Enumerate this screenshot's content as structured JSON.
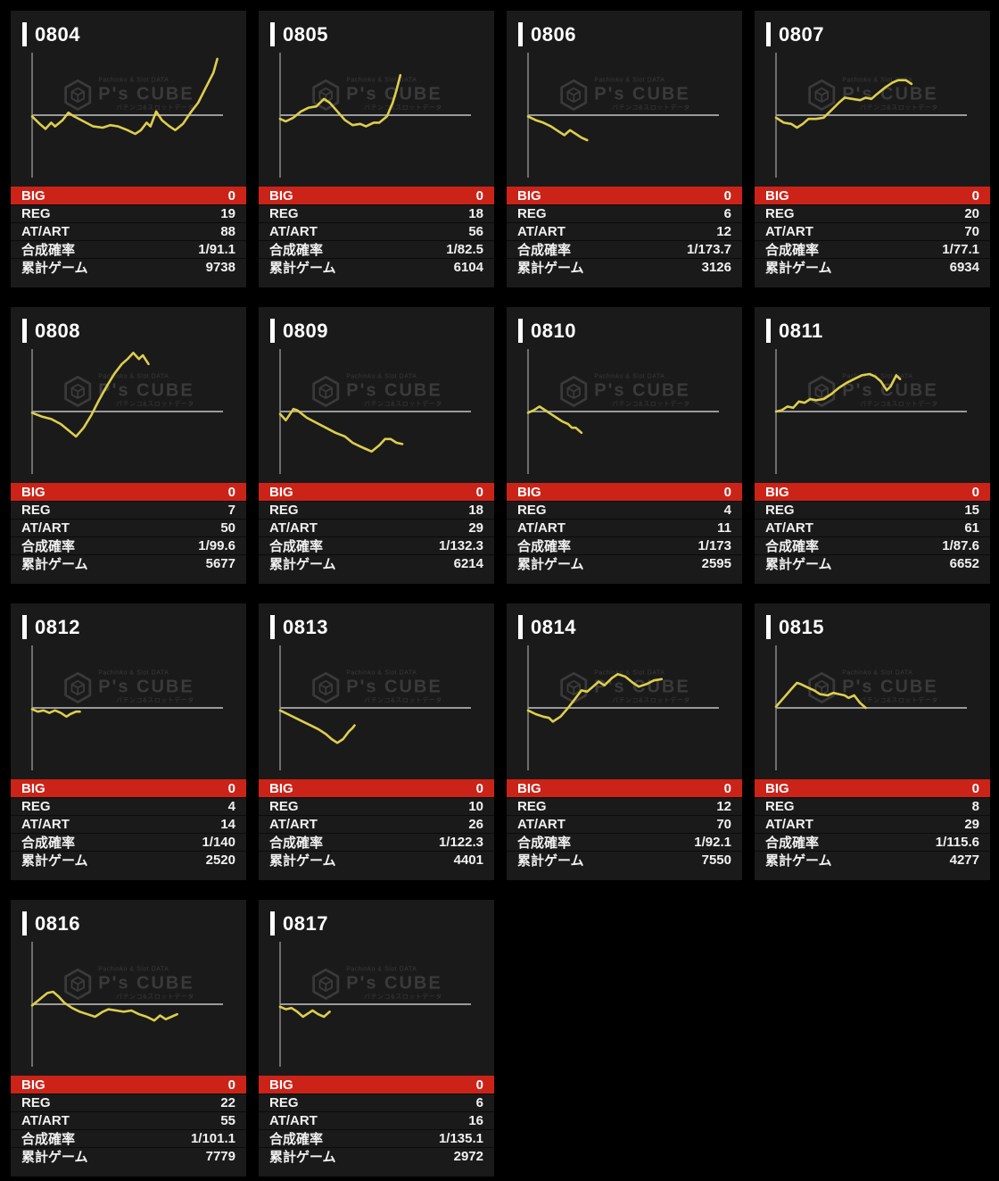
{
  "labels": {
    "big": "BIG",
    "reg": "REG",
    "at_art": "AT/ART",
    "rate": "合成確率",
    "total": "累計ゲーム"
  },
  "watermark": {
    "brand": "P's CUBE",
    "caption_top": "Pachinko & Slot DATA",
    "caption_bottom": "パチンコ&スロットデータ"
  },
  "colors": {
    "page_bg": "#000000",
    "card_bg": "#1a1a1a",
    "big_row_red": "#cc2318",
    "line_yellow": "#ddce4d",
    "axis_gray": "#9a9a9a",
    "text_white": "#f1f1f1",
    "watermark_gray": "#3a3a3a"
  },
  "machines": [
    {
      "id": "0804",
      "big": "0",
      "reg": "19",
      "at_art": "88",
      "rate": "1/91.1",
      "total": "9738",
      "points": [
        [
          0,
          -0.01
        ],
        [
          0.04,
          -0.07
        ],
        [
          0.07,
          -0.11
        ],
        [
          0.1,
          -0.06
        ],
        [
          0.12,
          -0.09
        ],
        [
          0.16,
          -0.04
        ],
        [
          0.19,
          0.02
        ],
        [
          0.22,
          -0.01
        ],
        [
          0.27,
          -0.05
        ],
        [
          0.32,
          -0.09
        ],
        [
          0.37,
          -0.1
        ],
        [
          0.41,
          -0.08
        ],
        [
          0.45,
          -0.09
        ],
        [
          0.5,
          -0.12
        ],
        [
          0.54,
          -0.15
        ],
        [
          0.57,
          -0.12
        ],
        [
          0.6,
          -0.06
        ],
        [
          0.62,
          -0.09
        ],
        [
          0.65,
          0.03
        ],
        [
          0.68,
          -0.04
        ],
        [
          0.72,
          -0.09
        ],
        [
          0.75,
          -0.12
        ],
        [
          0.79,
          -0.07
        ],
        [
          0.83,
          0.02
        ],
        [
          0.87,
          0.1
        ],
        [
          0.91,
          0.22
        ],
        [
          0.95,
          0.34
        ],
        [
          0.97,
          0.45
        ]
      ]
    },
    {
      "id": "0805",
      "big": "0",
      "reg": "18",
      "at_art": "56",
      "rate": "1/82.5",
      "total": "6104",
      "points": [
        [
          0,
          -0.03
        ],
        [
          0.03,
          -0.05
        ],
        [
          0.07,
          -0.02
        ],
        [
          0.11,
          0.03
        ],
        [
          0.15,
          0.06
        ],
        [
          0.19,
          0.07
        ],
        [
          0.23,
          0.13
        ],
        [
          0.26,
          0.1
        ],
        [
          0.3,
          0.03
        ],
        [
          0.34,
          -0.04
        ],
        [
          0.38,
          -0.08
        ],
        [
          0.42,
          -0.07
        ],
        [
          0.45,
          -0.09
        ],
        [
          0.49,
          -0.06
        ],
        [
          0.52,
          -0.06
        ],
        [
          0.56,
          -0.01
        ],
        [
          0.59,
          0.1
        ],
        [
          0.61,
          0.2
        ],
        [
          0.63,
          0.32
        ]
      ]
    },
    {
      "id": "0806",
      "big": "0",
      "reg": "6",
      "at_art": "12",
      "rate": "1/173.7",
      "total": "3126",
      "points": [
        [
          0,
          -0.01
        ],
        [
          0.04,
          -0.04
        ],
        [
          0.08,
          -0.06
        ],
        [
          0.12,
          -0.09
        ],
        [
          0.16,
          -0.13
        ],
        [
          0.19,
          -0.16
        ],
        [
          0.22,
          -0.12
        ],
        [
          0.25,
          -0.15
        ],
        [
          0.28,
          -0.18
        ],
        [
          0.31,
          -0.2
        ]
      ]
    },
    {
      "id": "0807",
      "big": "0",
      "reg": "20",
      "at_art": "70",
      "rate": "1/77.1",
      "total": "6934",
      "points": [
        [
          0,
          -0.02
        ],
        [
          0.04,
          -0.06
        ],
        [
          0.08,
          -0.07
        ],
        [
          0.11,
          -0.1
        ],
        [
          0.14,
          -0.07
        ],
        [
          0.17,
          -0.03
        ],
        [
          0.21,
          -0.03
        ],
        [
          0.25,
          -0.02
        ],
        [
          0.29,
          0.04
        ],
        [
          0.33,
          0.1
        ],
        [
          0.36,
          0.14
        ],
        [
          0.4,
          0.13
        ],
        [
          0.44,
          0.12
        ],
        [
          0.47,
          0.14
        ],
        [
          0.5,
          0.13
        ],
        [
          0.53,
          0.17
        ],
        [
          0.57,
          0.22
        ],
        [
          0.61,
          0.26
        ],
        [
          0.64,
          0.28
        ],
        [
          0.68,
          0.28
        ],
        [
          0.71,
          0.25
        ]
      ]
    },
    {
      "id": "0808",
      "big": "0",
      "reg": "7",
      "at_art": "50",
      "rate": "1/99.6",
      "total": "5677",
      "points": [
        [
          0,
          -0.01
        ],
        [
          0.05,
          -0.04
        ],
        [
          0.1,
          -0.06
        ],
        [
          0.15,
          -0.1
        ],
        [
          0.19,
          -0.15
        ],
        [
          0.23,
          -0.2
        ],
        [
          0.27,
          -0.13
        ],
        [
          0.31,
          -0.03
        ],
        [
          0.35,
          0.09
        ],
        [
          0.39,
          0.2
        ],
        [
          0.43,
          0.3
        ],
        [
          0.47,
          0.38
        ],
        [
          0.5,
          0.42
        ],
        [
          0.53,
          0.47
        ],
        [
          0.56,
          0.42
        ],
        [
          0.58,
          0.45
        ],
        [
          0.61,
          0.38
        ]
      ]
    },
    {
      "id": "0809",
      "big": "0",
      "reg": "18",
      "at_art": "29",
      "rate": "1/132.3",
      "total": "6214",
      "points": [
        [
          0,
          -0.02
        ],
        [
          0.03,
          -0.07
        ],
        [
          0.07,
          0.02
        ],
        [
          0.09,
          0.01
        ],
        [
          0.14,
          -0.05
        ],
        [
          0.19,
          -0.09
        ],
        [
          0.24,
          -0.13
        ],
        [
          0.29,
          -0.17
        ],
        [
          0.34,
          -0.2
        ],
        [
          0.38,
          -0.25
        ],
        [
          0.42,
          -0.28
        ],
        [
          0.45,
          -0.3
        ],
        [
          0.48,
          -0.32
        ],
        [
          0.52,
          -0.27
        ],
        [
          0.55,
          -0.22
        ],
        [
          0.58,
          -0.22
        ],
        [
          0.61,
          -0.25
        ],
        [
          0.64,
          -0.26
        ]
      ]
    },
    {
      "id": "0810",
      "big": "0",
      "reg": "4",
      "at_art": "11",
      "rate": "1/173",
      "total": "2595",
      "points": [
        [
          0,
          -0.01
        ],
        [
          0.03,
          0.01
        ],
        [
          0.06,
          0.04
        ],
        [
          0.09,
          0.01
        ],
        [
          0.12,
          -0.02
        ],
        [
          0.15,
          -0.05
        ],
        [
          0.18,
          -0.08
        ],
        [
          0.21,
          -0.1
        ],
        [
          0.23,
          -0.13
        ],
        [
          0.25,
          -0.13
        ],
        [
          0.28,
          -0.17
        ]
      ]
    },
    {
      "id": "0811",
      "big": "0",
      "reg": "15",
      "at_art": "61",
      "rate": "1/87.6",
      "total": "6652",
      "points": [
        [
          0,
          0
        ],
        [
          0.03,
          0.01
        ],
        [
          0.06,
          0.04
        ],
        [
          0.09,
          0.03
        ],
        [
          0.12,
          0.08
        ],
        [
          0.15,
          0.07
        ],
        [
          0.18,
          0.1
        ],
        [
          0.21,
          0.09
        ],
        [
          0.25,
          0.1
        ],
        [
          0.29,
          0.14
        ],
        [
          0.33,
          0.19
        ],
        [
          0.37,
          0.23
        ],
        [
          0.41,
          0.26
        ],
        [
          0.45,
          0.29
        ],
        [
          0.49,
          0.3
        ],
        [
          0.52,
          0.28
        ],
        [
          0.55,
          0.24
        ],
        [
          0.58,
          0.17
        ],
        [
          0.6,
          0.2
        ],
        [
          0.63,
          0.29
        ],
        [
          0.65,
          0.26
        ]
      ]
    },
    {
      "id": "0812",
      "big": "0",
      "reg": "4",
      "at_art": "14",
      "rate": "1/140",
      "total": "2520",
      "points": [
        [
          0,
          -0.01
        ],
        [
          0.03,
          -0.03
        ],
        [
          0.06,
          -0.02
        ],
        [
          0.09,
          -0.04
        ],
        [
          0.12,
          -0.02
        ],
        [
          0.15,
          -0.04
        ],
        [
          0.18,
          -0.07
        ],
        [
          0.2,
          -0.05
        ],
        [
          0.23,
          -0.03
        ],
        [
          0.25,
          -0.03
        ]
      ]
    },
    {
      "id": "0813",
      "big": "0",
      "reg": "10",
      "at_art": "26",
      "rate": "1/122.3",
      "total": "4401",
      "points": [
        [
          0,
          -0.02
        ],
        [
          0.04,
          -0.05
        ],
        [
          0.08,
          -0.08
        ],
        [
          0.12,
          -0.11
        ],
        [
          0.16,
          -0.14
        ],
        [
          0.2,
          -0.17
        ],
        [
          0.24,
          -0.21
        ],
        [
          0.27,
          -0.25
        ],
        [
          0.3,
          -0.28
        ],
        [
          0.33,
          -0.25
        ],
        [
          0.36,
          -0.19
        ],
        [
          0.38,
          -0.16
        ],
        [
          0.39,
          -0.14
        ]
      ]
    },
    {
      "id": "0814",
      "big": "0",
      "reg": "12",
      "at_art": "70",
      "rate": "1/92.1",
      "total": "7550",
      "points": [
        [
          0,
          -0.02
        ],
        [
          0.04,
          -0.05
        ],
        [
          0.08,
          -0.07
        ],
        [
          0.11,
          -0.08
        ],
        [
          0.13,
          -0.11
        ],
        [
          0.17,
          -0.07
        ],
        [
          0.21,
          0
        ],
        [
          0.25,
          0.08
        ],
        [
          0.28,
          0.14
        ],
        [
          0.31,
          0.13
        ],
        [
          0.34,
          0.17
        ],
        [
          0.37,
          0.21
        ],
        [
          0.4,
          0.18
        ],
        [
          0.44,
          0.24
        ],
        [
          0.47,
          0.27
        ],
        [
          0.51,
          0.25
        ],
        [
          0.55,
          0.2
        ],
        [
          0.58,
          0.17
        ],
        [
          0.62,
          0.19
        ],
        [
          0.66,
          0.22
        ],
        [
          0.7,
          0.23
        ]
      ]
    },
    {
      "id": "0815",
      "big": "0",
      "reg": "8",
      "at_art": "29",
      "rate": "1/115.6",
      "total": "4277",
      "points": [
        [
          0,
          0.01
        ],
        [
          0.04,
          0.08
        ],
        [
          0.08,
          0.15
        ],
        [
          0.11,
          0.2
        ],
        [
          0.13,
          0.19
        ],
        [
          0.17,
          0.16
        ],
        [
          0.2,
          0.14
        ],
        [
          0.23,
          0.11
        ],
        [
          0.27,
          0.1
        ],
        [
          0.3,
          0.12
        ],
        [
          0.33,
          0.11
        ],
        [
          0.36,
          0.1
        ],
        [
          0.38,
          0.08
        ],
        [
          0.41,
          0.1
        ],
        [
          0.44,
          0.04
        ],
        [
          0.47,
          0
        ]
      ]
    },
    {
      "id": "0816",
      "big": "0",
      "reg": "22",
      "at_art": "55",
      "rate": "1/101.1",
      "total": "7779",
      "points": [
        [
          0,
          -0.01
        ],
        [
          0.04,
          0.04
        ],
        [
          0.08,
          0.09
        ],
        [
          0.11,
          0.1
        ],
        [
          0.14,
          0.06
        ],
        [
          0.17,
          0.01
        ],
        [
          0.21,
          -0.03
        ],
        [
          0.25,
          -0.06
        ],
        [
          0.29,
          -0.08
        ],
        [
          0.33,
          -0.1
        ],
        [
          0.37,
          -0.06
        ],
        [
          0.4,
          -0.04
        ],
        [
          0.44,
          -0.05
        ],
        [
          0.48,
          -0.06
        ],
        [
          0.52,
          -0.05
        ],
        [
          0.56,
          -0.08
        ],
        [
          0.6,
          -0.1
        ],
        [
          0.64,
          -0.13
        ],
        [
          0.67,
          -0.09
        ],
        [
          0.7,
          -0.12
        ],
        [
          0.73,
          -0.1
        ],
        [
          0.76,
          -0.08
        ]
      ]
    },
    {
      "id": "0817",
      "big": "0",
      "reg": "6",
      "at_art": "16",
      "rate": "1/135.1",
      "total": "2972",
      "points": [
        [
          0,
          -0.02
        ],
        [
          0.03,
          -0.04
        ],
        [
          0.06,
          -0.03
        ],
        [
          0.09,
          -0.06
        ],
        [
          0.12,
          -0.1
        ],
        [
          0.15,
          -0.07
        ],
        [
          0.17,
          -0.05
        ],
        [
          0.2,
          -0.08
        ],
        [
          0.23,
          -0.1
        ],
        [
          0.26,
          -0.06
        ]
      ]
    }
  ]
}
